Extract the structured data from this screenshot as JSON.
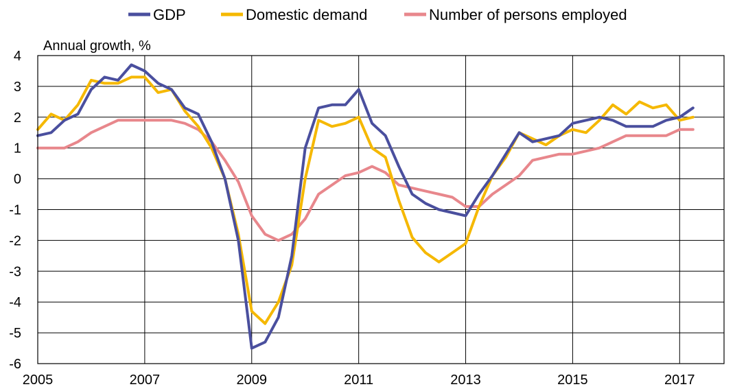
{
  "chart_data": {
    "type": "line",
    "title": "",
    "xlabel": "",
    "ylabel": "Annual growth, %",
    "xlim": [
      2005,
      2017.83
    ],
    "ylim": [
      -6,
      4
    ],
    "yticks": [
      4,
      3,
      2,
      1,
      0,
      -1,
      -2,
      -3,
      -4,
      -5,
      -6
    ],
    "ytick_labels": [
      "4",
      "3",
      "2",
      "1",
      "0",
      "-1",
      "-2",
      "-3",
      "-4",
      "-5",
      "-6"
    ],
    "xticks": [
      2005,
      2007,
      2009,
      2011,
      2013,
      2015,
      2017
    ],
    "xtick_labels": [
      "2005",
      "2007",
      "2009",
      "2011",
      "2013",
      "2015",
      "2017"
    ],
    "grid": true,
    "legend_position": "top",
    "x_step": 0.25,
    "x_start": 2005,
    "series": [
      {
        "name": "GDP",
        "color": "#4a4f9e",
        "values": [
          1.4,
          1.5,
          1.9,
          2.1,
          2.9,
          3.3,
          3.2,
          3.7,
          3.5,
          3.1,
          2.9,
          2.3,
          2.1,
          1.2,
          0.0,
          -2.0,
          -5.5,
          -5.3,
          -4.5,
          -2.5,
          1.0,
          2.3,
          2.4,
          2.4,
          2.9,
          1.8,
          1.4,
          0.4,
          -0.5,
          -0.8,
          -1.0,
          -1.1,
          -1.2,
          -0.5,
          0.1,
          0.8,
          1.5,
          1.2,
          1.3,
          1.4,
          1.8,
          1.9,
          2.0,
          1.9,
          1.7,
          1.7,
          1.7,
          1.9,
          2.0,
          2.3
        ]
      },
      {
        "name": "Domestic demand",
        "color": "#f5b800",
        "values": [
          1.6,
          2.1,
          1.9,
          2.4,
          3.2,
          3.1,
          3.1,
          3.3,
          3.3,
          2.8,
          2.9,
          2.2,
          1.7,
          1.0,
          0.0,
          -1.8,
          -4.3,
          -4.7,
          -4.0,
          -2.8,
          0.0,
          1.9,
          1.7,
          1.8,
          2.0,
          1.0,
          0.7,
          -0.7,
          -1.9,
          -2.4,
          -2.7,
          -2.4,
          -2.1,
          -0.9,
          0.1,
          0.7,
          1.5,
          1.3,
          1.1,
          1.4,
          1.6,
          1.5,
          1.9,
          2.4,
          2.1,
          2.5,
          2.3,
          2.4,
          1.9,
          2.0
        ]
      },
      {
        "name": "Number of persons employed",
        "color": "#e8878c",
        "values": [
          1.0,
          1.0,
          1.0,
          1.2,
          1.5,
          1.7,
          1.9,
          1.9,
          1.9,
          1.9,
          1.9,
          1.8,
          1.6,
          1.2,
          0.6,
          -0.1,
          -1.2,
          -1.8,
          -2.0,
          -1.8,
          -1.3,
          -0.5,
          -0.2,
          0.1,
          0.2,
          0.4,
          0.2,
          -0.2,
          -0.3,
          -0.4,
          -0.5,
          -0.6,
          -0.9,
          -0.9,
          -0.5,
          -0.2,
          0.1,
          0.6,
          0.7,
          0.8,
          0.8,
          0.9,
          1.0,
          1.2,
          1.4,
          1.4,
          1.4,
          1.4,
          1.6,
          1.6
        ]
      }
    ]
  }
}
